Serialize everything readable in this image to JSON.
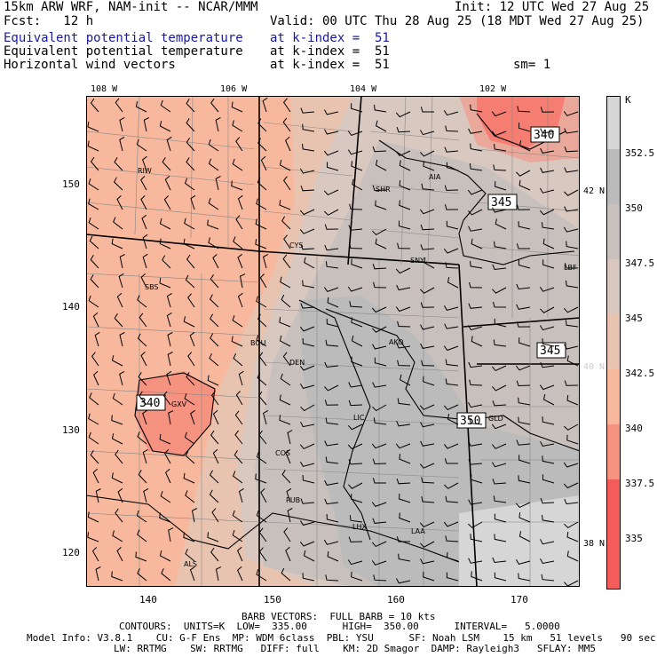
{
  "header": {
    "line1_left": "15km ARW WRF, NAM-init -- NCAR/MMM",
    "line1_right": "Init: 12 UTC Wed 27 Aug 25",
    "line2_left": "Fcst:   12 h",
    "line2_right": "Valid: 00 UTC Thu 28 Aug 25 (18 MDT Wed 27 Aug 25)",
    "fields": [
      {
        "name": "Equivalent potential temperature",
        "level": "at k-index =  51",
        "extra": "",
        "color": "#1a1aa0"
      },
      {
        "name": "Equivalent potential temperature",
        "level": "at k-index =  51",
        "extra": "",
        "color": "#000000"
      },
      {
        "name": "Horizontal wind vectors",
        "level": "at k-index =  51",
        "extra": "sm= 1",
        "color": "#000000"
      }
    ]
  },
  "map": {
    "top_lon_labels": [
      "108 W",
      "106 W",
      "104 W",
      "102 W"
    ],
    "right_lat_labels": [
      "42 N",
      "40 N",
      "38 N"
    ],
    "left_grid_labels": [
      "150",
      "140",
      "130",
      "120"
    ],
    "bottom_grid_labels": [
      "140",
      "150",
      "160",
      "170"
    ],
    "stations": [
      "RIW",
      "SHR",
      "AIA",
      "CYS",
      "SNY",
      "LBF",
      "SBS",
      "BOU",
      "AKO",
      "DEN",
      "LIC",
      "GLD",
      "GXV",
      "COS",
      "PUB",
      "LHX",
      "LAA",
      "ALS"
    ],
    "contour_labels": [
      "340",
      "345",
      "345",
      "350",
      "340"
    ],
    "colors": {
      "c335": "#f45c5c",
      "c337": "#f69380",
      "c340": "#f7b89e",
      "c342": "#e8c4b0",
      "c345": "#d8c8c0",
      "c347": "#c8c0bd",
      "c350": "#bbbbbb",
      "c352": "#d6d6d6"
    }
  },
  "colorbar": {
    "unit": "K",
    "labels": [
      "352.5",
      "350",
      "347.5",
      "345",
      "342.5",
      "340",
      "337.5",
      "335"
    ]
  },
  "footer": {
    "line1": "BARB VECTORS:  FULL BARB = 10 kts",
    "line2": "CONTOURS:  UNITS=K  LOW=  335.00      HIGH=  350.00      INTERVAL=   5.0000",
    "line3": "Model Info: V3.8.1    CU: G-F Ens  MP: WDM 6class  PBL: YSU      SF: Noah LSM    15 km   51 levels   90 sec",
    "line4": "LW: RRTMG    SW: RRTMG   DIFF: full    KM: 2D Smagor  DAMP: Rayleigh3   SFLAY: MM5"
  }
}
